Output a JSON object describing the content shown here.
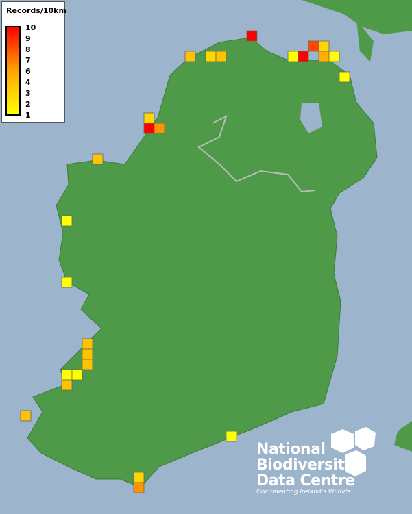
{
  "legend": {
    "title": "Records/10km",
    "ticks": [
      "10",
      "9",
      "8",
      "7",
      "6",
      "4",
      "3",
      "2",
      "1"
    ],
    "min_color": "#ffff00",
    "mid_color": "#ffa500",
    "max_color": "#ff0000"
  },
  "map": {
    "land_color": "#4f9a48",
    "sea_color": "#9cb4cc",
    "records_per_square": [
      10,
      4,
      3,
      4,
      1,
      10,
      8,
      3,
      5,
      1,
      1,
      3,
      10,
      6,
      4,
      1,
      1,
      4,
      4,
      4,
      1,
      1,
      4,
      4,
      1,
      3,
      6
    ]
  },
  "logo": {
    "line1": "National",
    "line2": "Biodiversity",
    "line3": "Data Centre",
    "tagline": "Documenting Ireland's Wildlife"
  }
}
